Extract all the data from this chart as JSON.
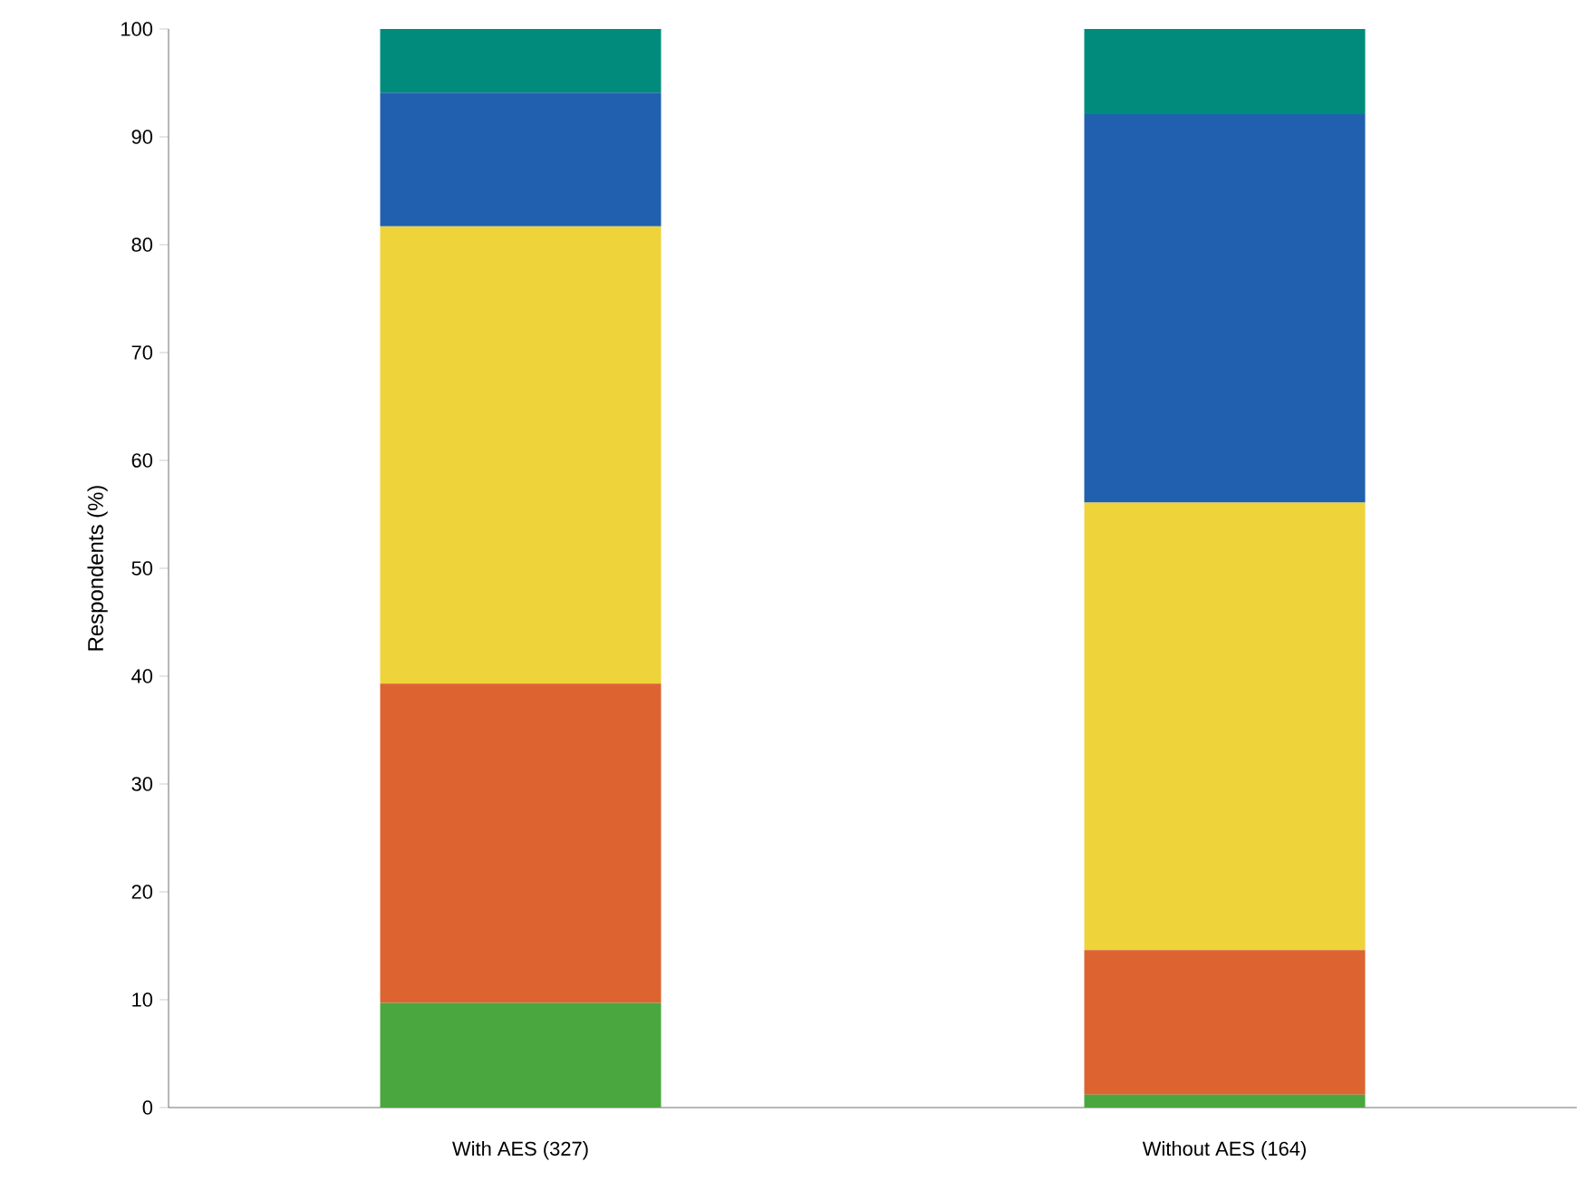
{
  "chart_data": {
    "type": "bar",
    "stacked": true,
    "ylabel": "Respondents (%)",
    "categories": [
      "With AES (327)",
      "Without AES (164)"
    ],
    "series": [
      {
        "color": "#4aa73f",
        "values": [
          9.7,
          1.2
        ]
      },
      {
        "color": "#dd6430",
        "values": [
          29.6,
          13.4
        ]
      },
      {
        "color": "#efd33a",
        "values": [
          42.4,
          41.5
        ]
      },
      {
        "color": "#2160ae",
        "values": [
          12.4,
          36.0
        ]
      },
      {
        "color": "#008b7c",
        "values": [
          5.9,
          7.9
        ]
      }
    ],
    "ylim": [
      0,
      100
    ],
    "yticks": [
      0,
      10,
      20,
      30,
      40,
      50,
      60,
      70,
      80,
      90,
      100
    ]
  }
}
